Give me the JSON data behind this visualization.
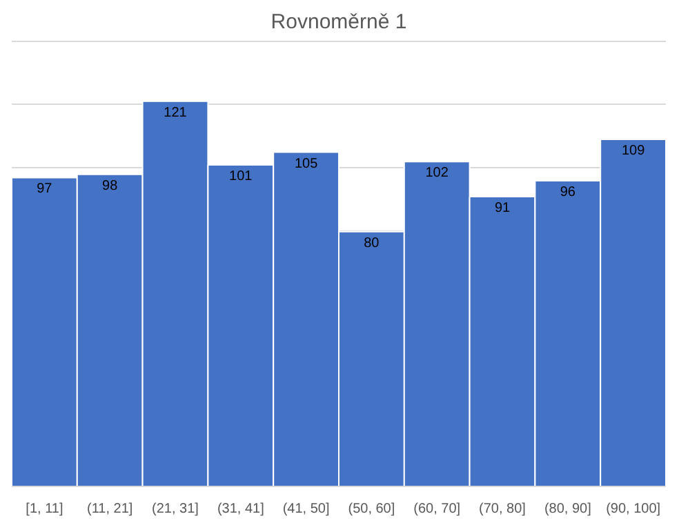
{
  "chart_data": {
    "type": "bar",
    "title": "Rovnoměrně 1",
    "categories": [
      "[1, 11]",
      "(11, 21]",
      "(21, 31]",
      "(31, 41]",
      "(41, 50]",
      "(50, 60]",
      "(60, 70]",
      "(70, 80]",
      "(80, 90]",
      "(90, 100]"
    ],
    "values": [
      97,
      98,
      121,
      101,
      105,
      80,
      102,
      91,
      96,
      109
    ],
    "color": "#4472c4",
    "data_labels": true,
    "grid": "y",
    "tick_labels": "x",
    "ylim": [
      0,
      140
    ],
    "yticks": [
      {
        "value": 0,
        "label": null
      },
      {
        "value": 80,
        "label": null
      },
      {
        "value": 100,
        "label": null
      },
      {
        "value": 120,
        "label": null
      },
      {
        "value": 140,
        "label": null
      }
    ]
  }
}
